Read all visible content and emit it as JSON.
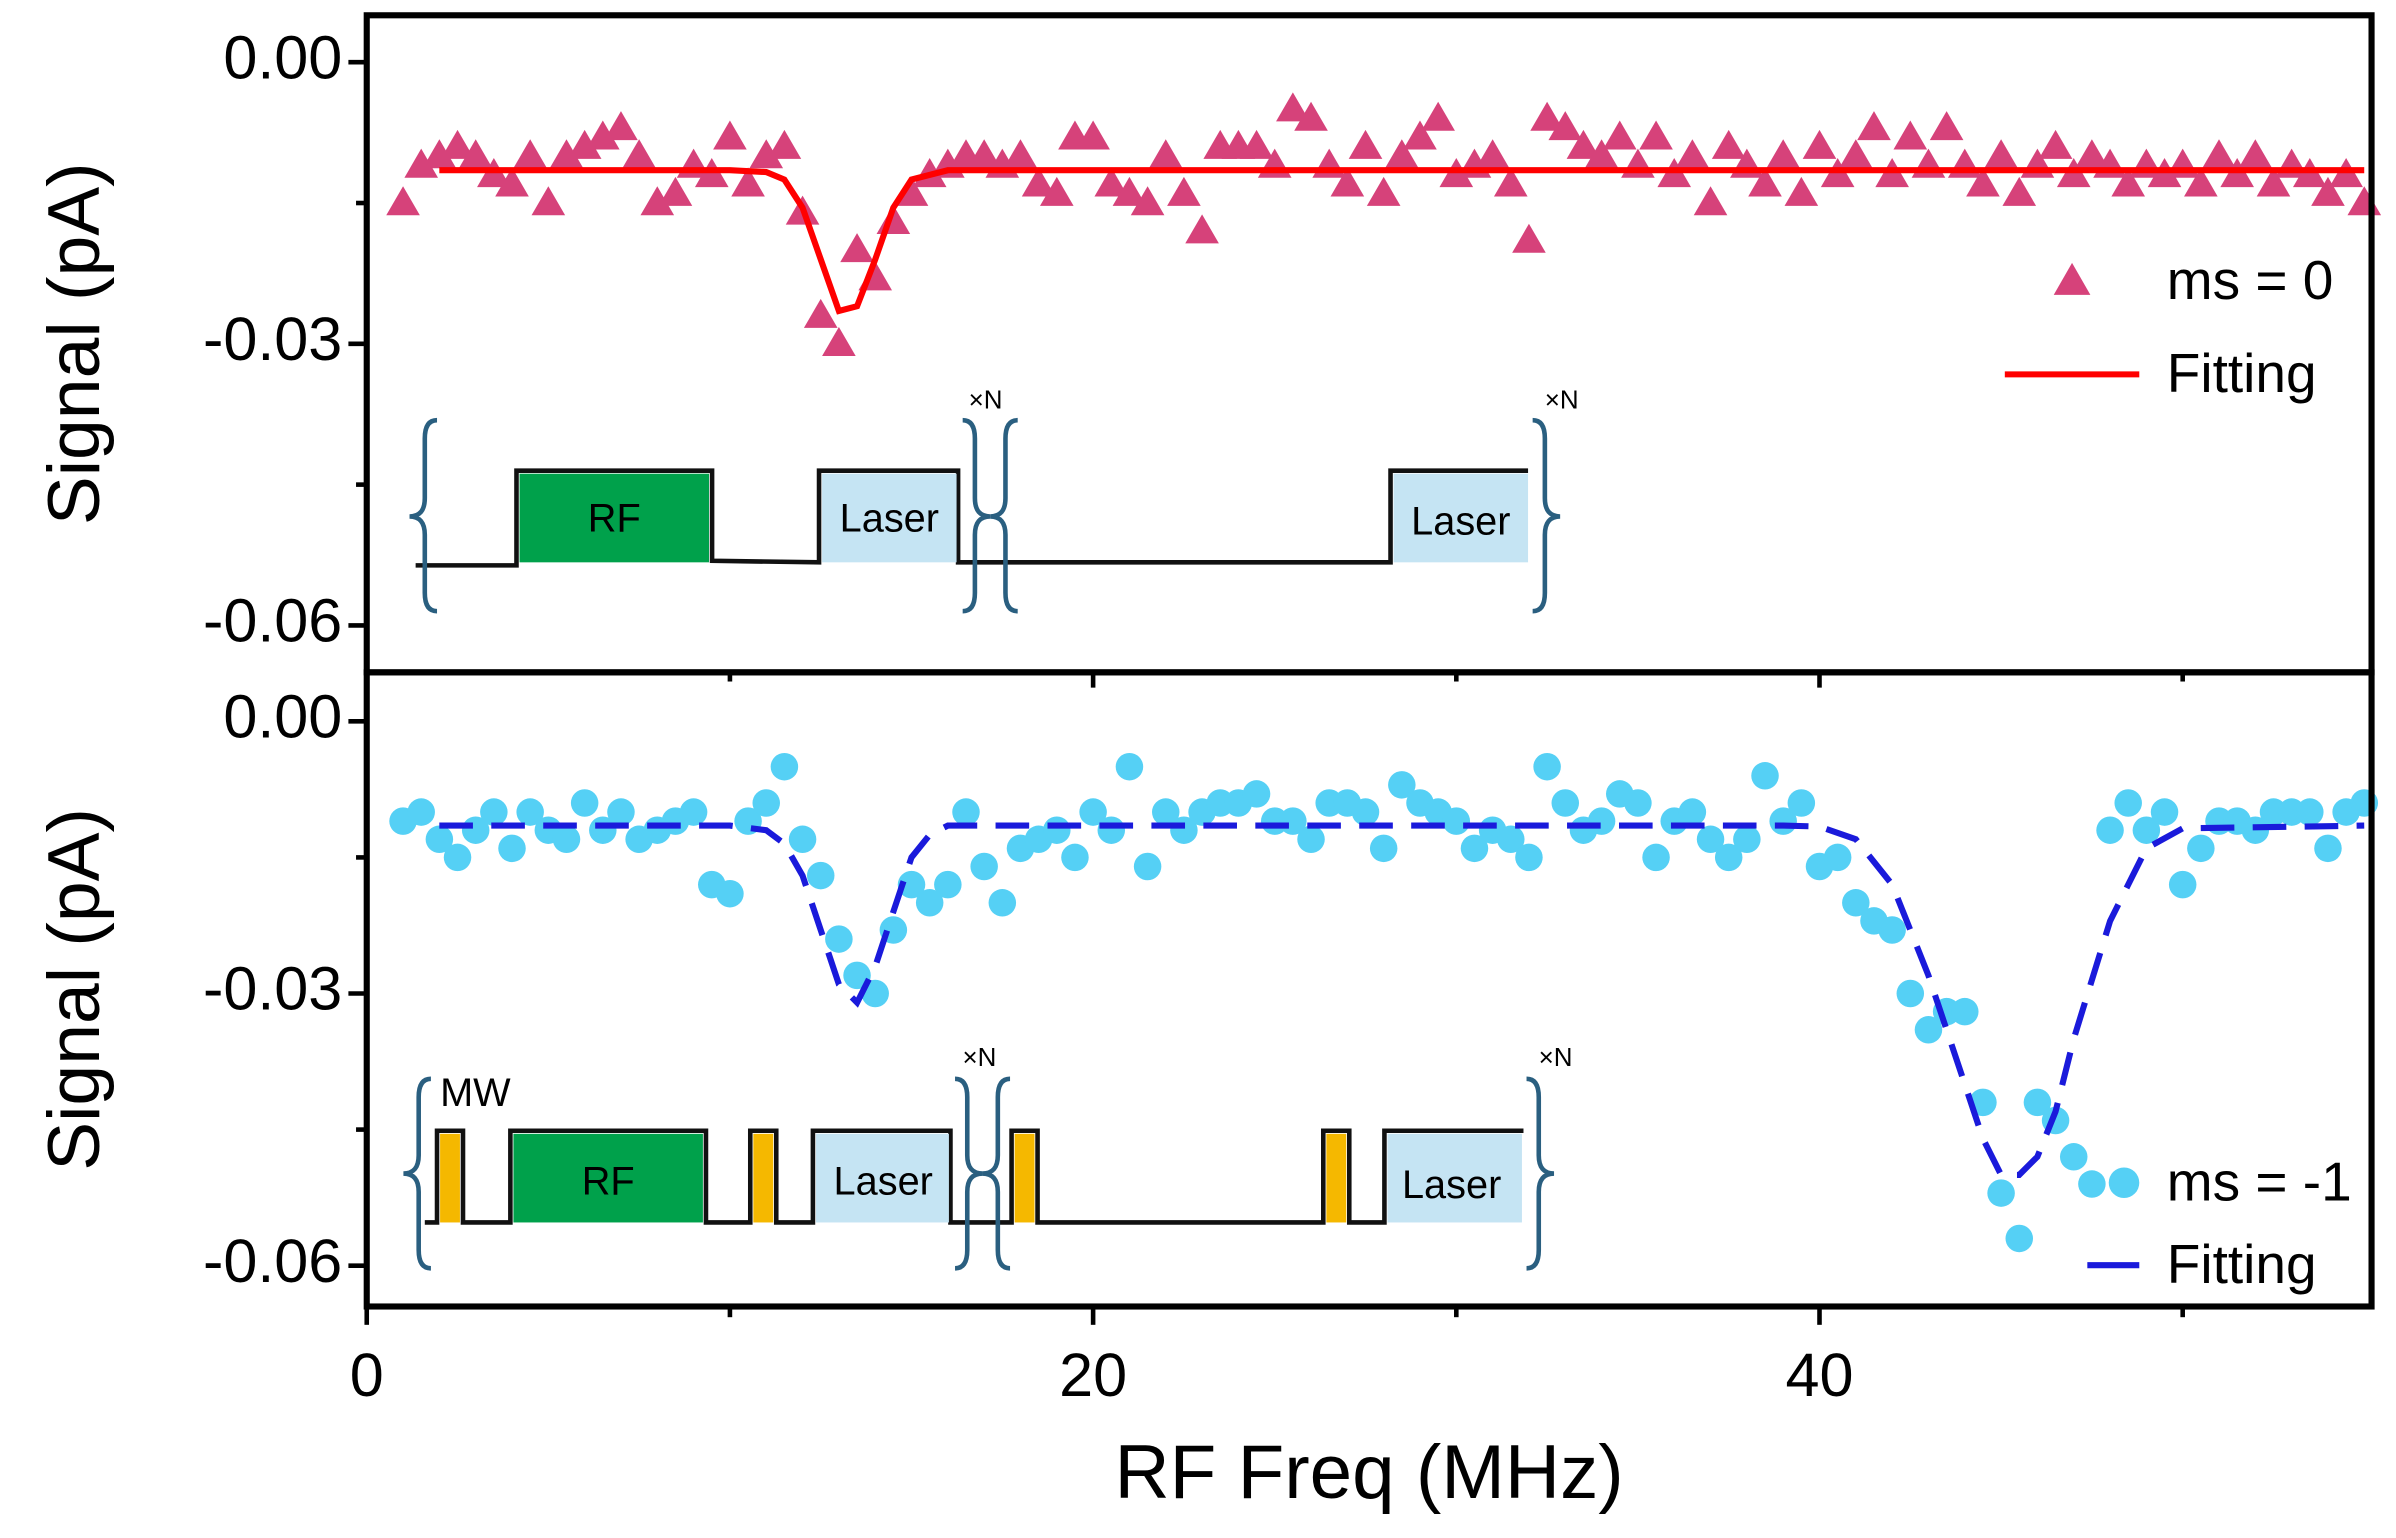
{
  "chart_data": [
    {
      "type": "scatter",
      "ylabel": "Signal (pA)",
      "xlim": [
        0,
        55.2
      ],
      "ylim": [
        -0.065,
        0.005
      ],
      "yticks": [
        {
          "value": 0,
          "label": "0.00"
        },
        {
          "value": -0.03,
          "label": "-0.03"
        },
        {
          "value": -0.06,
          "label": "-0.06"
        }
      ],
      "yticks_minor": [
        -0.015,
        -0.045
      ],
      "legend": "right",
      "series": [
        {
          "name": "ms = 0",
          "color": "#d6427a",
          "marker": "triangle",
          "x": [
            1,
            1.5,
            2,
            2.5,
            3,
            3.5,
            4,
            4.5,
            5,
            5.5,
            6,
            6.5,
            7,
            7.5,
            8,
            8.5,
            9,
            9.5,
            10,
            10.5,
            11,
            11.5,
            12,
            12.5,
            13,
            13.5,
            14,
            14.5,
            15,
            15.5,
            16,
            16.5,
            17,
            17.5,
            18,
            18.5,
            19,
            19.5,
            20,
            20.5,
            21,
            21.5,
            22,
            22.5,
            23,
            23.5,
            24,
            24.5,
            25,
            25.5,
            26,
            26.5,
            27,
            27.5,
            28,
            28.5,
            29,
            29.5,
            30,
            30.5,
            31,
            31.5,
            32,
            32.5,
            33,
            33.5,
            34,
            34.5,
            35,
            35.5,
            36,
            36.5,
            37,
            37.5,
            38,
            38.5,
            39,
            39.5,
            40,
            40.5,
            41,
            41.5,
            42,
            42.5,
            43,
            43.5,
            44,
            44.5,
            45,
            45.5,
            46,
            46.5,
            47,
            47.5,
            48,
            48.5,
            49,
            49.5,
            50,
            50.5,
            51,
            51.5,
            52,
            52.5,
            53,
            53.5,
            54,
            54.5,
            55
          ],
          "values": [
            -0.015,
            -0.011,
            -0.01,
            -0.009,
            -0.01,
            -0.012,
            -0.013,
            -0.01,
            -0.015,
            -0.01,
            -0.009,
            -0.008,
            -0.007,
            -0.01,
            -0.015,
            -0.014,
            -0.011,
            -0.012,
            -0.008,
            -0.013,
            -0.01,
            -0.009,
            -0.016,
            -0.027,
            -0.03,
            -0.02,
            -0.023,
            -0.017,
            -0.014,
            -0.012,
            -0.011,
            -0.01,
            -0.01,
            -0.011,
            -0.01,
            -0.013,
            -0.014,
            -0.008,
            -0.008,
            -0.013,
            -0.014,
            -0.015,
            -0.01,
            -0.014,
            -0.018,
            -0.009,
            -0.009,
            -0.009,
            -0.011,
            -0.005,
            -0.006,
            -0.011,
            -0.013,
            -0.009,
            -0.014,
            -0.01,
            -0.008,
            -0.006,
            -0.012,
            -0.011,
            -0.01,
            -0.013,
            -0.019,
            -0.006,
            -0.007,
            -0.009,
            -0.01,
            -0.008,
            -0.011,
            -0.008,
            -0.012,
            -0.01,
            -0.015,
            -0.009,
            -0.011,
            -0.013,
            -0.01,
            -0.014,
            -0.009,
            -0.012,
            -0.01,
            -0.007,
            -0.012,
            -0.008,
            -0.011,
            -0.007,
            -0.011,
            -0.013,
            -0.01,
            -0.014,
            -0.011,
            -0.009,
            -0.012,
            -0.01,
            -0.011,
            -0.013,
            -0.011,
            -0.012,
            -0.011,
            -0.013,
            -0.01,
            -0.012,
            -0.01,
            -0.013,
            -0.011,
            -0.012,
            -0.014,
            -0.012,
            -0.015
          ]
        },
        {
          "name": "Fitting",
          "color": "#ff0000",
          "marker": "line",
          "line_style": "solid",
          "x": [
            2,
            10,
            11,
            11.5,
            12,
            12.5,
            13,
            13.5,
            14,
            14.5,
            15,
            16,
            20,
            30,
            40,
            55
          ],
          "values": [
            -0.0115,
            -0.0115,
            -0.0117,
            -0.0125,
            -0.0155,
            -0.021,
            -0.0265,
            -0.026,
            -0.021,
            -0.0155,
            -0.0125,
            -0.0115,
            -0.0115,
            -0.0115,
            -0.0115,
            -0.0115
          ]
        }
      ],
      "inset": {
        "rf": "RF",
        "laser1": "Laser",
        "repeat1": "×N",
        "laser2": "Laser",
        "repeat2": "×N"
      }
    },
    {
      "type": "scatter",
      "ylabel": "Signal (pA)",
      "xlabel": "RF Freq (MHz)",
      "xlim": [
        0,
        55.2
      ],
      "ylim": [
        -0.0645,
        0.0054
      ],
      "xticks": [
        0,
        20,
        40
      ],
      "xticks_minor": [
        10,
        30,
        50
      ],
      "yticks": [
        {
          "value": 0,
          "label": "0.00"
        },
        {
          "value": -0.03,
          "label": "-0.03"
        },
        {
          "value": -0.06,
          "label": "-0.06"
        }
      ],
      "yticks_minor": [
        -0.015,
        -0.045
      ],
      "legend": "right",
      "series": [
        {
          "name": "ms = -1",
          "color": "#55d0f5",
          "marker": "circle",
          "x": [
            1,
            1.5,
            2,
            2.5,
            3,
            3.5,
            4,
            4.5,
            5,
            5.5,
            6,
            6.5,
            7,
            7.5,
            8,
            8.5,
            9,
            9.5,
            10,
            10.5,
            11,
            11.5,
            12,
            12.5,
            13,
            13.5,
            14,
            14.5,
            15,
            15.5,
            16,
            16.5,
            17,
            17.5,
            18,
            18.5,
            19,
            19.5,
            20,
            20.5,
            21,
            21.5,
            22,
            22.5,
            23,
            23.5,
            24,
            24.5,
            25,
            25.5,
            26,
            26.5,
            27,
            27.5,
            28,
            28.5,
            29,
            29.5,
            30,
            30.5,
            31,
            31.5,
            32,
            32.5,
            33,
            33.5,
            34,
            34.5,
            35,
            35.5,
            36,
            36.5,
            37,
            37.5,
            38,
            38.5,
            39,
            39.5,
            40,
            40.5,
            41,
            41.5,
            42,
            42.5,
            43,
            43.5,
            44,
            44.5,
            45,
            45.5,
            46,
            46.5,
            47,
            47.5,
            48,
            48.5,
            49,
            49.5,
            50,
            50.5,
            51,
            51.5,
            52,
            52.5,
            53,
            53.5,
            54,
            54.5,
            55
          ],
          "values": [
            -0.011,
            -0.01,
            -0.013,
            -0.015,
            -0.012,
            -0.01,
            -0.014,
            -0.01,
            -0.012,
            -0.013,
            -0.009,
            -0.012,
            -0.01,
            -0.013,
            -0.012,
            -0.011,
            -0.01,
            -0.018,
            -0.019,
            -0.011,
            -0.009,
            -0.005,
            -0.013,
            -0.017,
            -0.024,
            -0.028,
            -0.03,
            -0.023,
            -0.018,
            -0.02,
            -0.018,
            -0.01,
            -0.016,
            -0.02,
            -0.014,
            -0.013,
            -0.012,
            -0.015,
            -0.01,
            -0.012,
            -0.005,
            -0.016,
            -0.01,
            -0.012,
            -0.01,
            -0.009,
            -0.009,
            -0.008,
            -0.011,
            -0.011,
            -0.013,
            -0.009,
            -0.009,
            -0.01,
            -0.014,
            -0.007,
            -0.009,
            -0.01,
            -0.011,
            -0.014,
            -0.012,
            -0.013,
            -0.015,
            -0.005,
            -0.009,
            -0.012,
            -0.011,
            -0.008,
            -0.009,
            -0.015,
            -0.011,
            -0.01,
            -0.013,
            -0.015,
            -0.013,
            -0.006,
            -0.011,
            -0.009,
            -0.016,
            -0.015,
            -0.02,
            -0.022,
            -0.023,
            -0.03,
            -0.034,
            -0.032,
            -0.032,
            -0.042,
            -0.052,
            -0.057,
            -0.042,
            -0.044,
            -0.048,
            -0.051,
            -0.012,
            -0.009,
            -0.012,
            -0.01,
            -0.018,
            -0.014,
            -0.011,
            -0.011,
            -0.012,
            -0.01,
            -0.01,
            -0.01,
            -0.014,
            -0.01,
            -0.009
          ]
        },
        {
          "name": "Fitting",
          "color": "#1a1adb",
          "marker": "line",
          "line_style": "dashed",
          "x": [
            2,
            10,
            11,
            11.5,
            12,
            12.5,
            13,
            13.5,
            14,
            14.5,
            15,
            15.5,
            16,
            39,
            40,
            41,
            42,
            43,
            44,
            44.5,
            45,
            45.5,
            46,
            46.5,
            47,
            48,
            49,
            50,
            55
          ],
          "values": [
            -0.0115,
            -0.0115,
            -0.012,
            -0.0135,
            -0.017,
            -0.023,
            -0.029,
            -0.031,
            -0.027,
            -0.021,
            -0.015,
            -0.0125,
            -0.0115,
            -0.0115,
            -0.0116,
            -0.013,
            -0.018,
            -0.028,
            -0.04,
            -0.046,
            -0.05,
            -0.05,
            -0.048,
            -0.043,
            -0.035,
            -0.022,
            -0.014,
            -0.0118,
            -0.0115
          ]
        }
      ],
      "inset": {
        "mw": "MW",
        "rf": "RF",
        "laser1": "Laser",
        "repeat1": "×N",
        "laser2": "Laser",
        "repeat2": "×N"
      }
    }
  ]
}
